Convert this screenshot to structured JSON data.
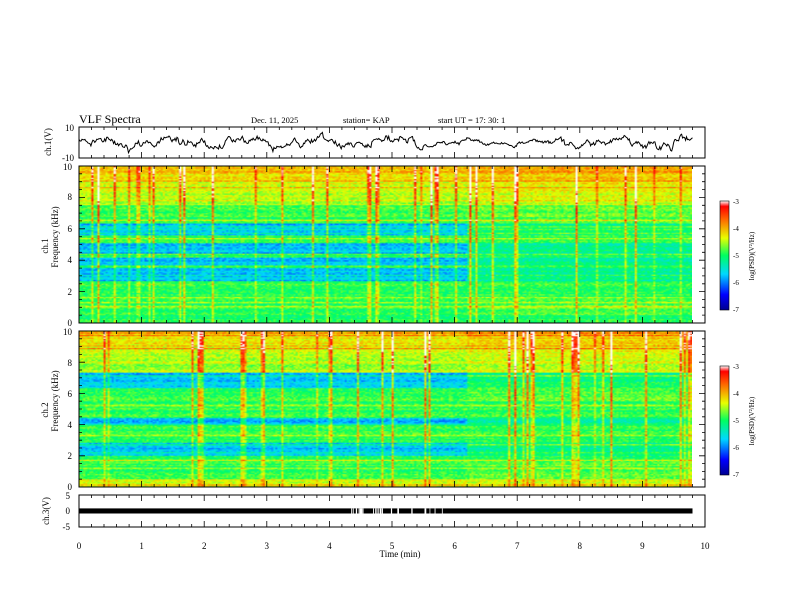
{
  "header": {
    "title": "VLF Spectra",
    "date": "Dec. 11, 2025",
    "station": "station= KAP",
    "start_ut": "start  UT  =    17: 30: 1"
  },
  "chart_data": [
    {
      "type": "line",
      "id": "ch1-waveform",
      "ylabel": "ch.1(V)",
      "ylim": [
        -10,
        10
      ],
      "y_ticks": [
        "10",
        "-10"
      ],
      "xlim": [
        0,
        10
      ],
      "x_data_end": 9.8,
      "note": "noisy waveform oscillating roughly between -6 and +6 V"
    },
    {
      "type": "heatmap",
      "id": "ch1-spectrogram",
      "title": "ch.1",
      "ylabel": "Frequency (kHz)",
      "ylim": [
        0,
        10
      ],
      "y_ticks": [
        "0",
        "2",
        "4",
        "6",
        "8",
        "10"
      ],
      "xlim": [
        0,
        10
      ],
      "x_data_end": 9.8,
      "regime_change_min": 6.2,
      "colorbar": {
        "label": "log(PSD)(V²/Hz)",
        "range": [
          -7,
          -3
        ],
        "ticks": [
          "-3",
          "-4",
          "-5",
          "-6",
          "-7"
        ]
      },
      "quiet_bands_khz": [
        [
          5.6,
          6.3
        ],
        [
          4.4,
          5.1
        ],
        [
          2.7,
          3.5
        ],
        [
          3.7,
          4.2
        ]
      ]
    },
    {
      "type": "heatmap",
      "id": "ch2-spectrogram",
      "title": "ch.2",
      "ylabel": "Frequency (kHz)",
      "ylim": [
        0,
        10
      ],
      "y_ticks": [
        "0",
        "2",
        "4",
        "6",
        "8",
        "10"
      ],
      "xlim": [
        0,
        10
      ],
      "x_data_end": 9.8,
      "regime_change_min": 6.2,
      "colorbar": {
        "label": "log(PSD)(V²/Hz)",
        "range": [
          -7,
          -3
        ],
        "ticks": [
          "-3",
          "-4",
          "-5",
          "-6",
          "-7"
        ]
      },
      "quiet_bands_khz": [
        [
          6.3,
          7.3
        ],
        [
          2.0,
          2.8
        ],
        [
          4.0,
          4.4
        ]
      ]
    },
    {
      "type": "line",
      "id": "ch3-waveform",
      "ylabel": "ch.3(V)",
      "ylim": [
        -5,
        5
      ],
      "y_ticks": [
        "5",
        "0",
        "-5"
      ],
      "xlim": [
        0,
        10
      ],
      "x_data_end": 9.8,
      "note": "dense pulse train between about -0.8 and 0.8 V"
    }
  ],
  "x_axis": {
    "label": "Time (min)",
    "ticks": [
      "0",
      "1",
      "2",
      "3",
      "4",
      "5",
      "6",
      "7",
      "8",
      "9",
      "10"
    ]
  }
}
